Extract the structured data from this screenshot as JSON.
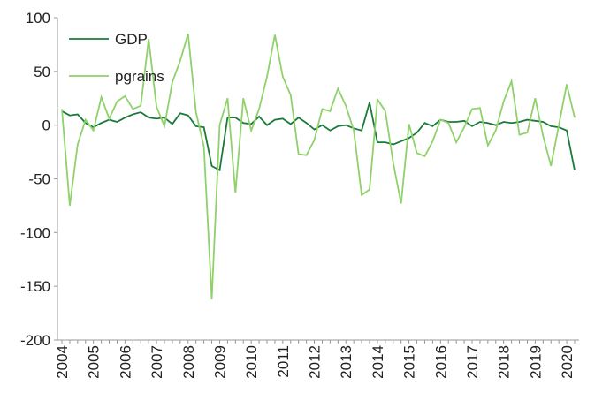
{
  "chart_data": {
    "type": "line",
    "categories": [
      "2004",
      null,
      null,
      null,
      "2005",
      null,
      null,
      null,
      "2006",
      null,
      null,
      null,
      "2007",
      null,
      null,
      null,
      "2008",
      null,
      null,
      null,
      "2009",
      null,
      null,
      null,
      "2010",
      null,
      null,
      null,
      "2011",
      null,
      null,
      null,
      "2012",
      null,
      null,
      null,
      "2013",
      null,
      null,
      null,
      "2014",
      null,
      null,
      null,
      "2015",
      null,
      null,
      null,
      "2016",
      null,
      null,
      null,
      "2017",
      null,
      null,
      null,
      "2018",
      null,
      null,
      null,
      "2019",
      null,
      null,
      null,
      "2020",
      null
    ],
    "series": [
      {
        "name": "GDP",
        "color": "#1a7a3a",
        "values": [
          13,
          9,
          10,
          2,
          -2,
          2,
          5,
          3,
          7,
          10,
          12,
          7,
          6,
          7,
          1,
          11,
          9,
          -1,
          -2,
          -38,
          -42,
          7,
          7,
          2,
          1,
          8,
          0,
          5,
          6,
          1,
          7,
          2,
          -4,
          0,
          -5,
          -1,
          0,
          -3,
          -5,
          21,
          -16,
          -16,
          -18,
          -15,
          -12,
          -7,
          2,
          -1,
          5,
          3,
          3,
          4,
          -1,
          3,
          2,
          0,
          3,
          2,
          3,
          5,
          4,
          3,
          -1,
          -2,
          -5,
          -42
        ]
      },
      {
        "name": "pgrains",
        "color": "#8fd16a",
        "values": [
          15,
          -75,
          -18,
          5,
          -5,
          26,
          6,
          22,
          27,
          15,
          18,
          80,
          17,
          -1,
          40,
          60,
          85,
          12,
          -20,
          -162,
          0,
          25,
          -63,
          25,
          -5,
          15,
          45,
          84,
          45,
          28,
          -27,
          -28,
          -14,
          15,
          13,
          34,
          18,
          -5,
          -65,
          -60,
          24,
          13,
          -35,
          -73,
          1,
          -26,
          -29,
          -15,
          5,
          2,
          -16,
          -2,
          15,
          16,
          -19,
          -5,
          22,
          41,
          -9,
          -7,
          25,
          -10,
          -38,
          0,
          38,
          7
        ]
      }
    ],
    "ylim": [
      -200,
      100
    ],
    "yticks": [
      -200,
      -150,
      -100,
      -50,
      0,
      50,
      100
    ],
    "grid": false,
    "legend": "upper left"
  }
}
